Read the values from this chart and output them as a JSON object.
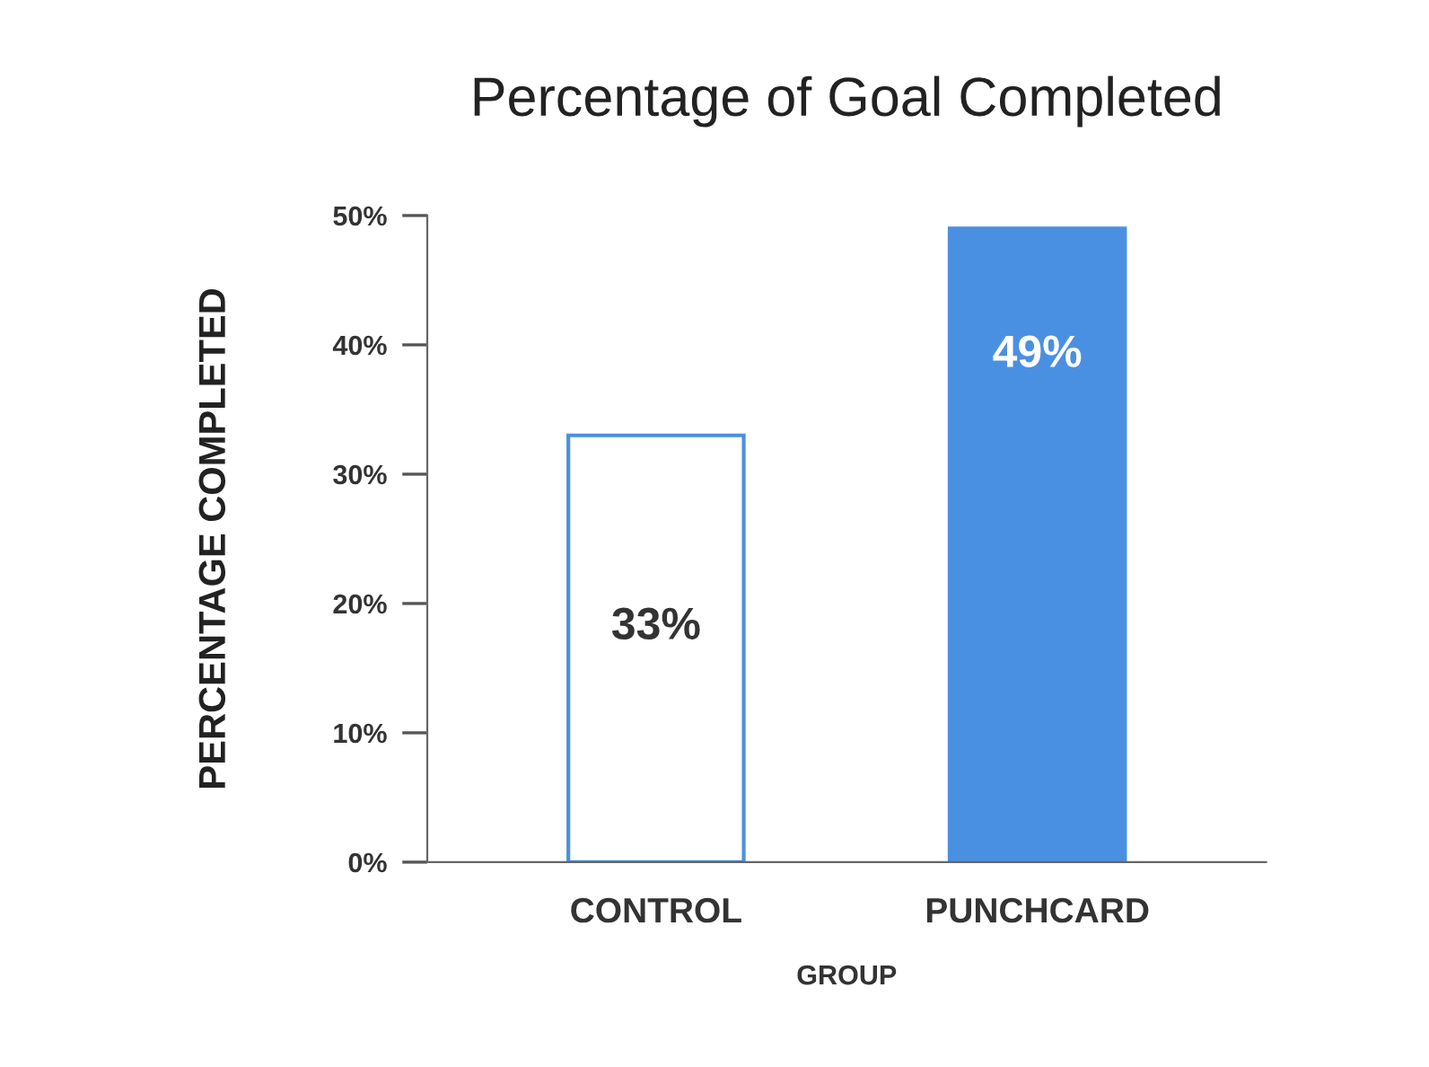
{
  "chart_data": {
    "type": "bar",
    "title": "Percentage of Goal Completed",
    "xlabel": "GROUP",
    "ylabel": "PERCENTAGE COMPLETED",
    "categories": [
      "CONTROL",
      "PUNCHCARD"
    ],
    "values": [
      33,
      49
    ],
    "colors": [
      "#ffffff",
      "#4a90e2"
    ],
    "value_labels": [
      "33%",
      "49%"
    ],
    "ylim": [
      0,
      50
    ],
    "yticks": [
      {
        "value": 0,
        "label": "0%"
      },
      {
        "value": 10,
        "label": "10%"
      },
      {
        "value": 20,
        "label": "20%"
      },
      {
        "value": 30,
        "label": "30%"
      },
      {
        "value": 40,
        "label": "40%"
      },
      {
        "value": 50,
        "label": "50%"
      }
    ],
    "grid": false,
    "legend": false
  }
}
